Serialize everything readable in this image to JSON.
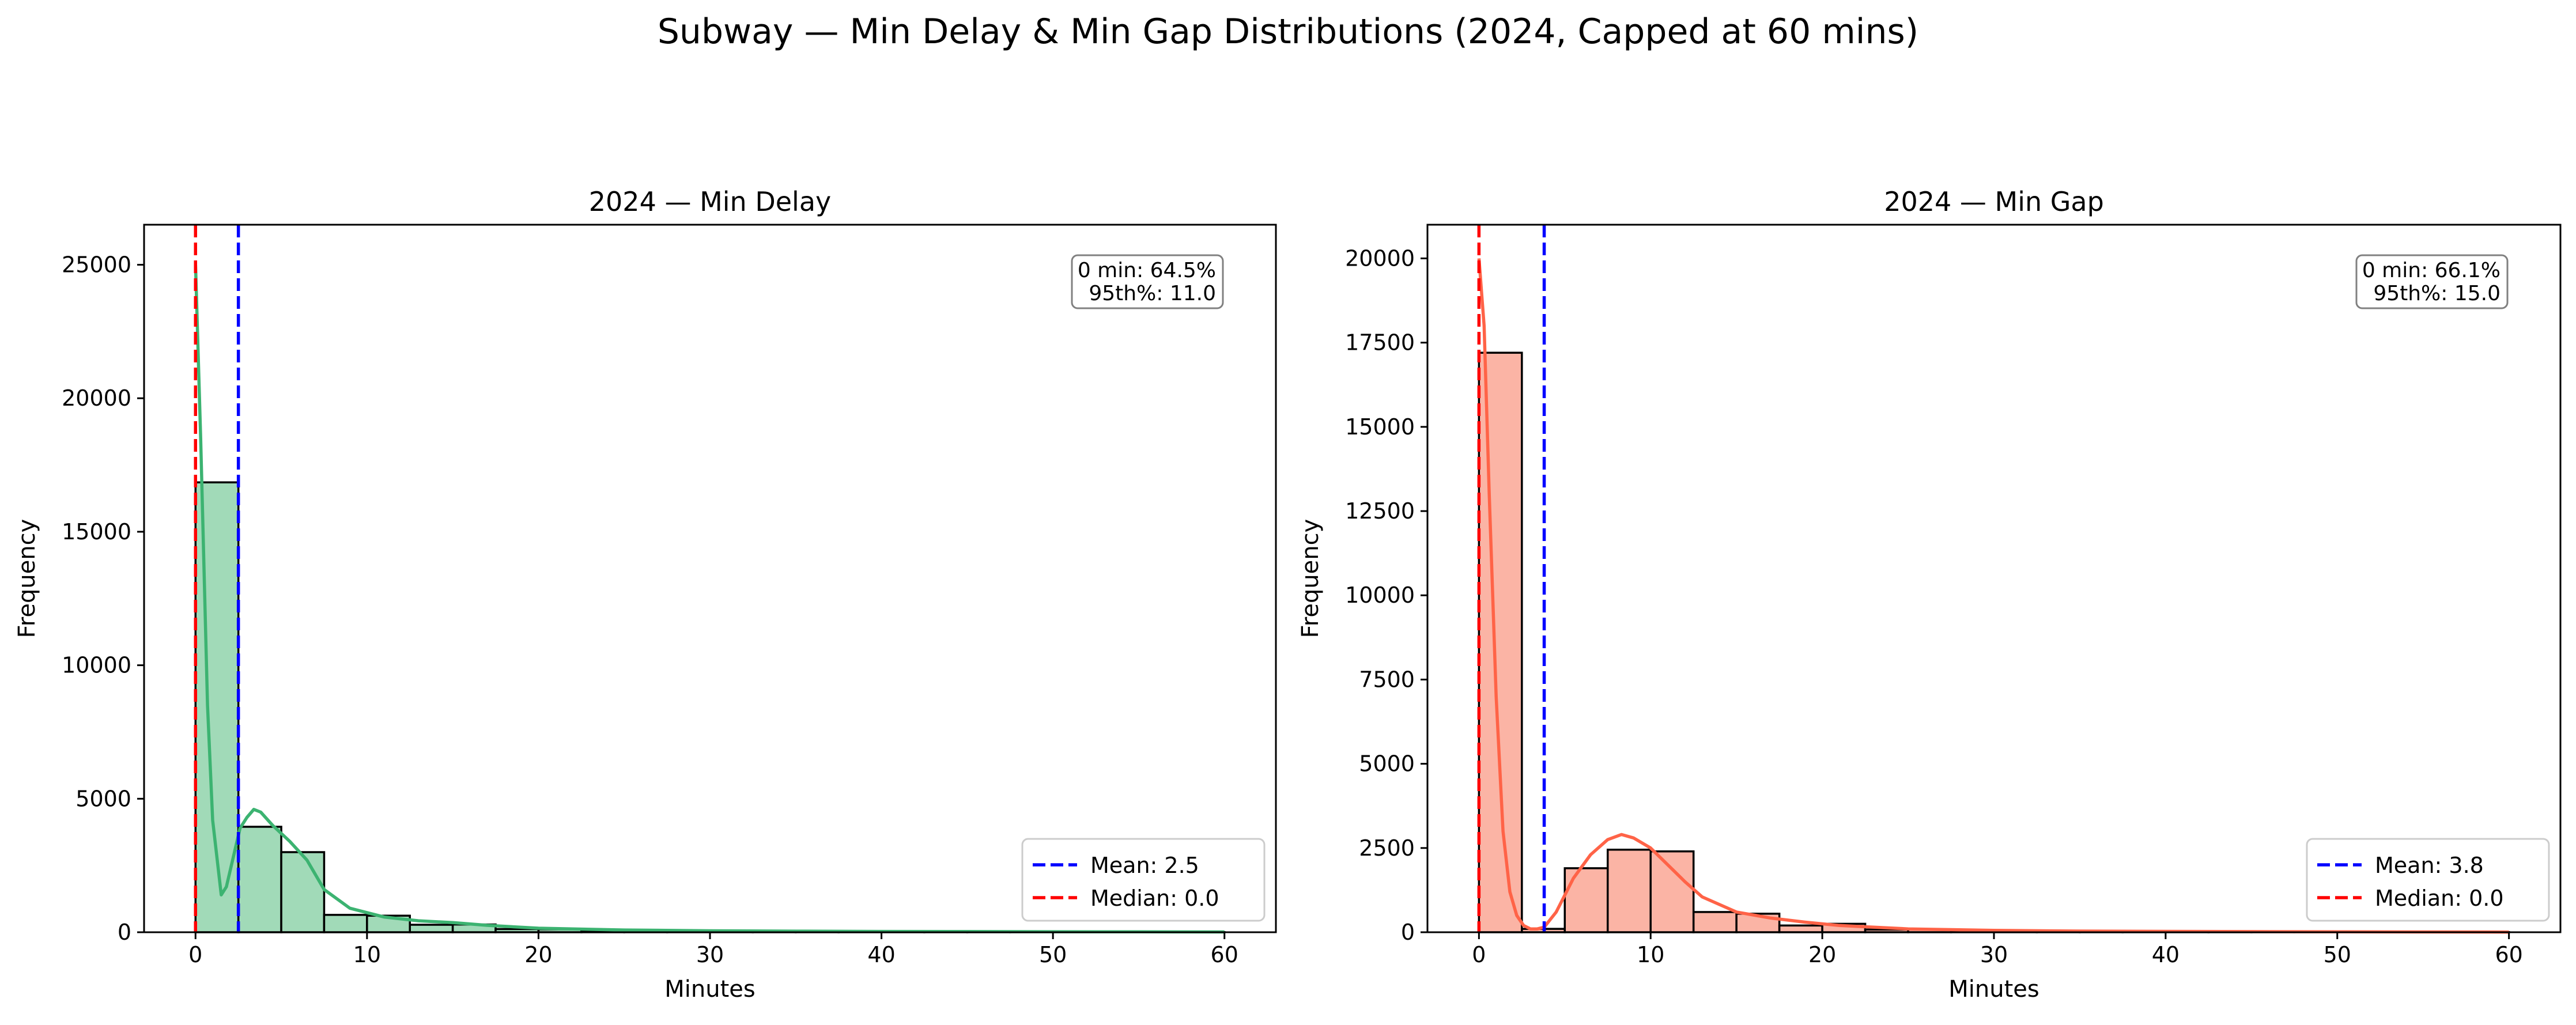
{
  "figure": {
    "suptitle": "Subway — Min Delay & Min Gap Distributions (2024, Capped at 60 mins)"
  },
  "chart_data": [
    {
      "type": "histogram",
      "title": "2024 — Min Delay",
      "xlabel": "Minutes",
      "ylabel": "Frequency",
      "xlim": [
        -3,
        63
      ],
      "ylim": [
        0,
        26500
      ],
      "xticks": [
        0,
        10,
        20,
        30,
        40,
        50,
        60
      ],
      "yticks": [
        0,
        5000,
        10000,
        15000,
        20000,
        25000
      ],
      "bin_width": 2.5,
      "bins_start": [
        0,
        2.5,
        5,
        7.5,
        10,
        12.5,
        15,
        17.5,
        20,
        22.5,
        25,
        27.5,
        30,
        32.5,
        35,
        37.5,
        40,
        42.5,
        45,
        47.5,
        50,
        52.5,
        55,
        57.5
      ],
      "counts": [
        16850,
        3950,
        3000,
        650,
        620,
        280,
        290,
        120,
        110,
        60,
        50,
        40,
        35,
        25,
        20,
        15,
        12,
        10,
        10,
        8,
        8,
        6,
        6,
        5
      ],
      "bar_color": "#a1dab8",
      "line_color": "#3cb371",
      "kde": {
        "x": [
          0,
          0.3,
          0.7,
          1.0,
          1.5,
          1.8,
          2.2,
          2.6,
          3.0,
          3.4,
          3.8,
          4.5,
          5.5,
          6.5,
          7.5,
          9,
          11,
          13,
          15,
          17,
          20,
          25,
          30,
          35,
          40,
          45,
          50,
          55,
          60
        ],
        "y": [
          25000,
          18500,
          8500,
          4200,
          1400,
          1700,
          2800,
          3900,
          4300,
          4600,
          4500,
          4000,
          3400,
          2700,
          1600,
          900,
          570,
          430,
          360,
          260,
          150,
          85,
          55,
          40,
          30,
          25,
          20,
          15,
          10
        ]
      },
      "mean": 2.5,
      "median": 0.0,
      "mean_color": "#0000ff",
      "median_color": "#ff0000",
      "legend": [
        "Mean: 2.5",
        "Median: 0.0"
      ],
      "legend_position": "lower-right",
      "annotation": [
        "0 min: 64.5%",
        "95th%: 11.0"
      ]
    },
    {
      "type": "histogram",
      "title": "2024 — Min Gap",
      "xlabel": "Minutes",
      "ylabel": "Frequency",
      "xlim": [
        -3,
        63
      ],
      "ylim": [
        0,
        21000
      ],
      "xticks": [
        0,
        10,
        20,
        30,
        40,
        50,
        60
      ],
      "yticks": [
        0,
        2500,
        5000,
        7500,
        10000,
        12500,
        15000,
        17500,
        20000
      ],
      "bin_width": 2.5,
      "bins_start": [
        0,
        2.5,
        5,
        7.5,
        10,
        12.5,
        15,
        17.5,
        20,
        22.5,
        25,
        27.5,
        30,
        32.5,
        35,
        37.5,
        40,
        42.5,
        45,
        47.5,
        50,
        52.5,
        55,
        57.5
      ],
      "counts": [
        17200,
        100,
        1900,
        2450,
        2400,
        600,
        550,
        200,
        250,
        80,
        80,
        50,
        30,
        25,
        20,
        15,
        15,
        10,
        10,
        8,
        8,
        6,
        6,
        5
      ],
      "bar_color": "#fbb4a5",
      "line_color": "#ff6347",
      "kde": {
        "x": [
          0,
          0.3,
          0.6,
          1.0,
          1.4,
          1.8,
          2.2,
          2.6,
          3.0,
          3.4,
          3.8,
          4.5,
          5.5,
          6.5,
          7.5,
          8.3,
          9,
          10,
          11,
          12,
          13,
          15,
          17,
          19,
          21,
          23,
          25,
          30,
          35,
          40,
          45,
          50,
          55,
          60
        ],
        "y": [
          20000,
          18000,
          13000,
          7000,
          3000,
          1200,
          500,
          200,
          100,
          100,
          150,
          600,
          1600,
          2300,
          2750,
          2900,
          2800,
          2500,
          2000,
          1500,
          1050,
          600,
          420,
          300,
          200,
          150,
          100,
          55,
          35,
          25,
          18,
          12,
          8,
          5
        ]
      },
      "mean": 3.8,
      "median": 0.0,
      "mean_color": "#0000ff",
      "median_color": "#ff0000",
      "legend": [
        "Mean: 3.8",
        "Median: 0.0"
      ],
      "legend_position": "lower-right",
      "annotation": [
        "0 min: 66.1%",
        "95th%: 15.0"
      ]
    }
  ]
}
